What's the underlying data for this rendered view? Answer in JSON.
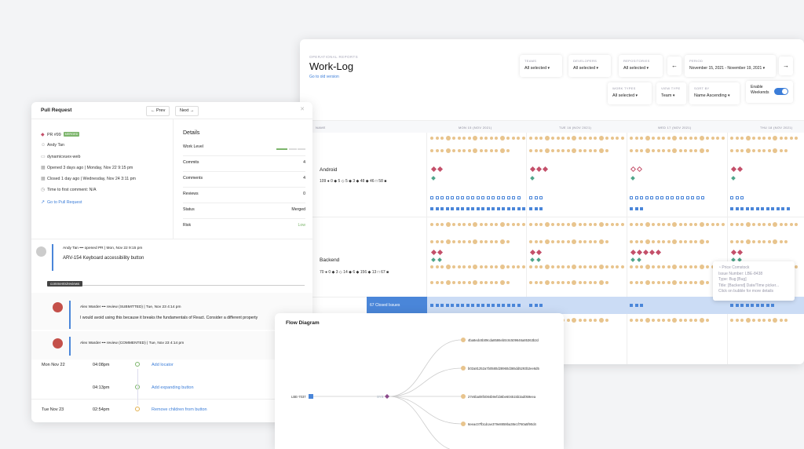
{
  "worklog": {
    "eyebrow": "OPERATIONAL REPORTS",
    "title": "Work-Log",
    "old_version_link": "Go to old version",
    "filters": {
      "teams": {
        "label": "TEAMS",
        "value": "All selected"
      },
      "developers": {
        "label": "DEVELOPERS",
        "value": "All selected"
      },
      "repositories": {
        "label": "REPOSITORIES",
        "value": "All selected"
      },
      "period": {
        "label": "PERIOD",
        "value": "November 15, 2021 - November 19, 2021"
      },
      "work_types": {
        "label": "WORK TYPES",
        "value": "All selected"
      },
      "view_type": {
        "label": "VIEW TYPE",
        "value": "Team"
      },
      "sort_by": {
        "label": "SORT BY",
        "value": "Name Ascending"
      },
      "weekends": {
        "label": "Enable Weekends",
        "enabled": true
      }
    },
    "columns": {
      "name": "NAME",
      "days": [
        "MON 15 (NOV 2021)",
        "TUE 16 (NOV 2021)",
        "WED 17 (NOV 2021)",
        "THU 18 (NOV 2021)"
      ]
    },
    "teams": [
      {
        "name": "Android",
        "stats": "109 ● 0 ◆ 5 ◇ 5 ◆ 3 ◆ 48 ◆ 46 □ 58 ■"
      },
      {
        "name": "Backend",
        "stats": "70 ● 0 ◆ 3 ◇ 14 ◆ 6 ◆ 156 ◆ 13 □ 67 ■"
      }
    ],
    "selected_row_label": "67 Closed Issues",
    "tooltip": {
      "author": "Price Comstock",
      "issue": "Issue Number: LBE-8438",
      "type": "Type: Bug [Bug]",
      "title": "Title: [Backend] Date/Time picker...",
      "hint": "Click on bubble for more details"
    },
    "colors": {
      "bubble": "#e8c48d",
      "diamond": "#c4506a",
      "teal": "#4fa58a",
      "square": "#4a86d9",
      "accent": "#3b7dd8"
    }
  },
  "pr": {
    "title": "Pull Request",
    "prev": "Prev",
    "next": "Next",
    "number": "PR #99",
    "status_badge": "MERGED",
    "author": "Andy Tan",
    "repo": "dynamicvuex-web",
    "opened": "Opened 3 days ago | Monday, Nov 22 9:15 pm",
    "closed": "Closed 1 day ago | Wednesday, Nov 24 3:11 pm",
    "time_first_comment": "Time to first comment: N/A",
    "goto_link": "Go to Pull Request",
    "details": {
      "title": "Details",
      "rows": [
        {
          "label": "Work Level",
          "value": ""
        },
        {
          "label": "Commits",
          "value": "4"
        },
        {
          "label": "Comments",
          "value": "4"
        },
        {
          "label": "Reviews",
          "value": "0"
        },
        {
          "label": "Status",
          "value": "Merged"
        },
        {
          "label": "Risk",
          "value": "Low"
        }
      ]
    },
    "opened_event": {
      "header": "Andy Tan ••• opened PR | Mon, Nov 22 9:15 pm",
      "title": "ARV-154 Keyboard accessibility button"
    },
    "comments_tag": "comments/reviews",
    "reviews": [
      {
        "header": "Alex Warder ••• review (SUBMITTED) | Tue, Nov 23 4:14 pm",
        "body": "I would avoid using this because it breaks the fundamentals of React. Consider a different property"
      },
      {
        "header": "Alex Warder ••• review (COMMENTED) | Tue, Nov 23 4:14 pm",
        "body": ""
      }
    ],
    "timeline": [
      {
        "date": "Mon Nov 22",
        "time": "04:08pm",
        "action": "Add locator"
      },
      {
        "date": "",
        "time": "04:13pm",
        "action": "Add expanding button"
      },
      {
        "date": "Tue Nov 23",
        "time": "02:54pm",
        "action": "Remove children from button"
      }
    ]
  },
  "flow": {
    "title": "Flow Diagram",
    "root": "LBE-7037",
    "middle": "SYS",
    "nodes": [
      "4ba8edc6b09cda8586eb0c8c509646a85363b2d",
      "b02a81252a7b0580d28960d365dd5293b2ee6d5",
      "27e5ba08f4084b9ef1b6be604515b3ad059eea",
      "6eeac07fb1dcae379e8859ba38e1f760a5f90d4"
    ]
  }
}
